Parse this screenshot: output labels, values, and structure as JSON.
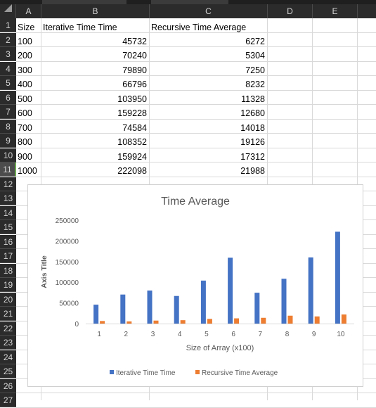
{
  "columns": [
    "A",
    "B",
    "C",
    "D",
    "E"
  ],
  "rows": [
    "1",
    "2",
    "3",
    "4",
    "5",
    "6",
    "7",
    "8",
    "9",
    "10",
    "11",
    "12",
    "13",
    "14",
    "15",
    "16",
    "17",
    "18",
    "19",
    "20",
    "21",
    "22",
    "23",
    "24",
    "25",
    "26",
    "27"
  ],
  "headers": {
    "a": "Size",
    "b": "Iterative Time Time",
    "c": "Recursive Time Average"
  },
  "table": [
    [
      "100",
      "45732",
      "6272"
    ],
    [
      "200",
      "70240",
      "5304"
    ],
    [
      "300",
      "79890",
      "7250"
    ],
    [
      "400",
      "66796",
      "8232"
    ],
    [
      "500",
      "103950",
      "11328"
    ],
    [
      "600",
      "159228",
      "12680"
    ],
    [
      "700",
      "74584",
      "14018"
    ],
    [
      "800",
      "108352",
      "19126"
    ],
    [
      "900",
      "159924",
      "17312"
    ],
    [
      "1000",
      "222098",
      "21988"
    ]
  ],
  "chart_data": {
    "type": "bar",
    "title": "Time Average",
    "xlabel": "Size of Array (x100)",
    "ylabel": "Axis Title",
    "categories": [
      "1",
      "2",
      "3",
      "4",
      "5",
      "6",
      "7",
      "8",
      "9",
      "10"
    ],
    "ylim": [
      0,
      250000
    ],
    "yticks": [
      "0",
      "50000",
      "100000",
      "150000",
      "200000",
      "250000"
    ],
    "grid": false,
    "legend": "bottom",
    "series": [
      {
        "name": "Iterative Time Time",
        "color": "#4472c4",
        "values": [
          45732,
          70240,
          79890,
          66796,
          103950,
          159228,
          74584,
          108352,
          159924,
          222098
        ]
      },
      {
        "name": "Recursive Time Average",
        "color": "#ed7d31",
        "values": [
          6272,
          5304,
          7250,
          8232,
          11328,
          12680,
          14018,
          19126,
          17312,
          21988
        ]
      }
    ]
  }
}
